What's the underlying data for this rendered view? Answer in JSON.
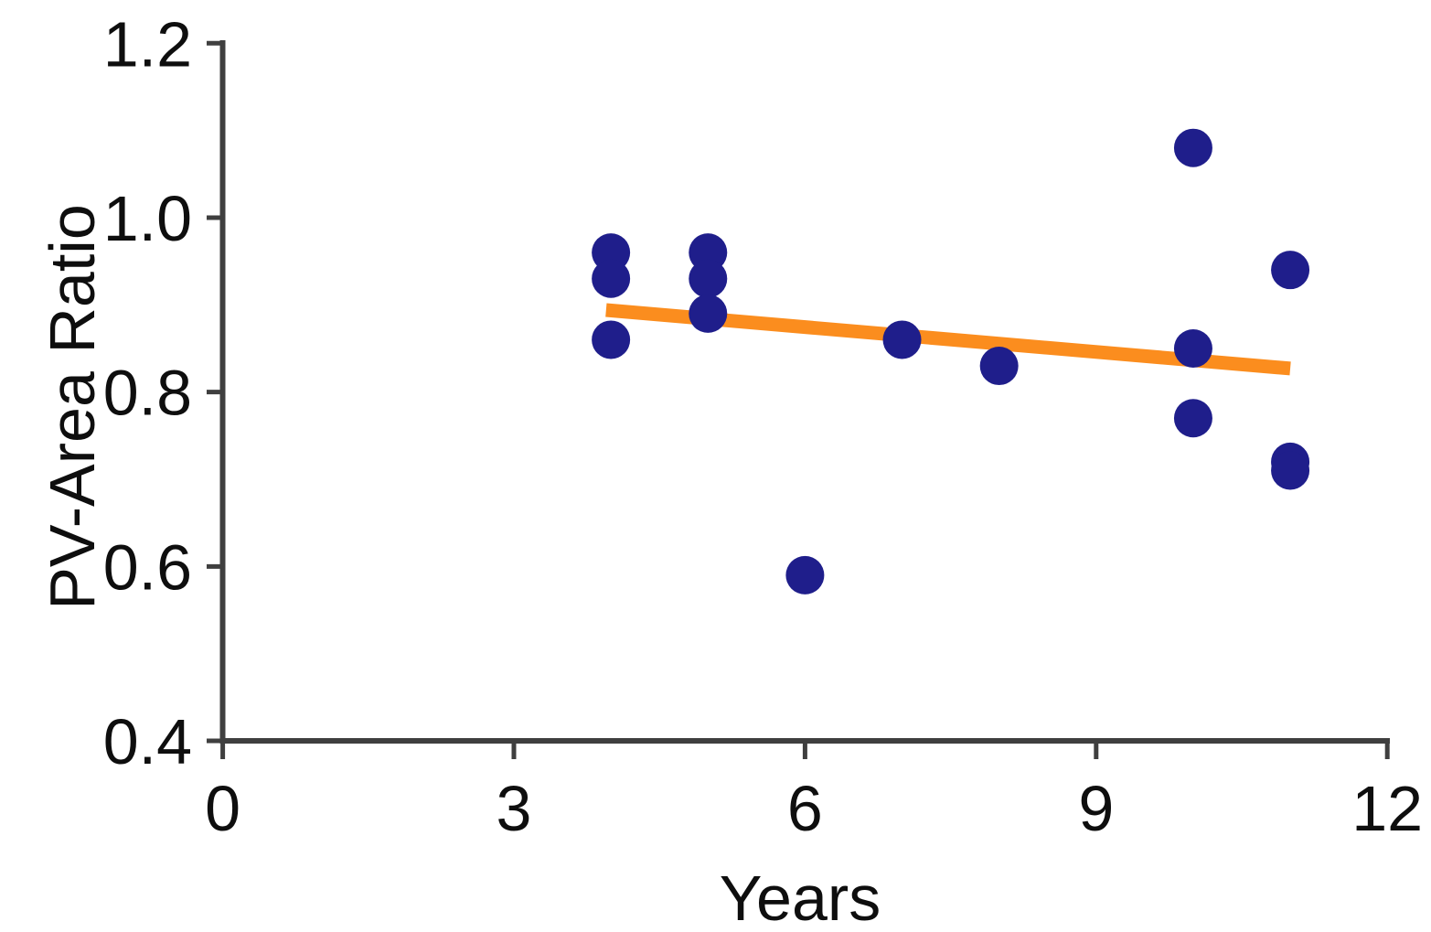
{
  "figure": {
    "background": "#ffffff"
  },
  "colors": {
    "point": "#1f1e8b",
    "trend": "#fb8d1e",
    "axis": "#3f3f3f",
    "text": "#0e0e0e"
  },
  "chart_data": {
    "type": "scatter",
    "title": "",
    "xlabel": "Years",
    "ylabel": "PV-Area Ratio",
    "xlim": [
      0,
      12
    ],
    "ylim": [
      0.4,
      1.2
    ],
    "grid": false,
    "legend": null,
    "xticks": {
      "values": [
        0,
        3,
        6,
        9,
        12
      ],
      "labels": [
        "0",
        "3",
        "6",
        "9",
        "12"
      ]
    },
    "yticks": {
      "values": [
        0.4,
        0.6,
        0.8,
        1.0,
        1.2
      ],
      "labels": [
        "0.4",
        "0.6",
        "0.8",
        "1.0",
        "1.2"
      ]
    },
    "series": [
      {
        "name": "PV-Area Ratio",
        "marker": "circle",
        "color": "#1f1e8b",
        "points": [
          {
            "x": 4,
            "y": 0.96
          },
          {
            "x": 4,
            "y": 0.93
          },
          {
            "x": 4,
            "y": 0.86
          },
          {
            "x": 5,
            "y": 0.96
          },
          {
            "x": 5,
            "y": 0.93
          },
          {
            "x": 5,
            "y": 0.89
          },
          {
            "x": 6,
            "y": 0.59
          },
          {
            "x": 7,
            "y": 0.86
          },
          {
            "x": 8,
            "y": 0.83
          },
          {
            "x": 10,
            "y": 1.08
          },
          {
            "x": 10,
            "y": 0.85
          },
          {
            "x": 10,
            "y": 0.77
          },
          {
            "x": 11,
            "y": 0.94
          },
          {
            "x": 11,
            "y": 0.72
          },
          {
            "x": 11,
            "y": 0.71
          }
        ]
      }
    ],
    "trendline": {
      "x1": 3.95,
      "y1": 0.894,
      "x2": 11.0,
      "y2": 0.827,
      "color": "#fb8d1e"
    }
  }
}
